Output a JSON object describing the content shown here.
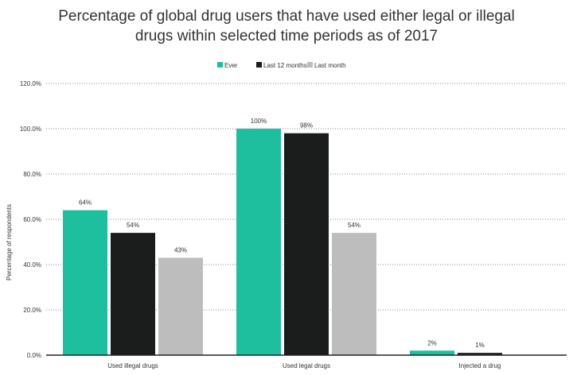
{
  "chart_data": {
    "type": "bar",
    "title": "Percentage of global drug users that have used either legal or illegal drugs within selected time periods as of 2017",
    "title_lines": [
      "Percentage of global drug users that have used either legal or illegal",
      "drugs within selected time periods as of 2017"
    ],
    "xlabel": "",
    "ylabel": "Percentage of respondents",
    "ylim": [
      0,
      120
    ],
    "yticks": [
      "0.0%",
      "20.0%",
      "40.0%",
      "60.0%",
      "80.0%",
      "100.0%",
      "120.0%"
    ],
    "grid": true,
    "legend_position": "top",
    "categories": [
      "Used illegal drugs",
      "Used legal drugs",
      "Injected a drug"
    ],
    "series": [
      {
        "name": "Ever",
        "color": "#1dbf9f",
        "values": [
          64,
          100,
          2
        ],
        "labels": [
          "64%",
          "100%",
          "2%"
        ]
      },
      {
        "name": "Last 12 months",
        "color": "#1a1d1c",
        "values": [
          54,
          98,
          1
        ],
        "labels": [
          "54%",
          "98%",
          "1%"
        ]
      },
      {
        "name": "Last month",
        "color": "#bdbdbd",
        "values": [
          43,
          54,
          null
        ],
        "labels": [
          "43%",
          "54%",
          null
        ]
      }
    ]
  }
}
